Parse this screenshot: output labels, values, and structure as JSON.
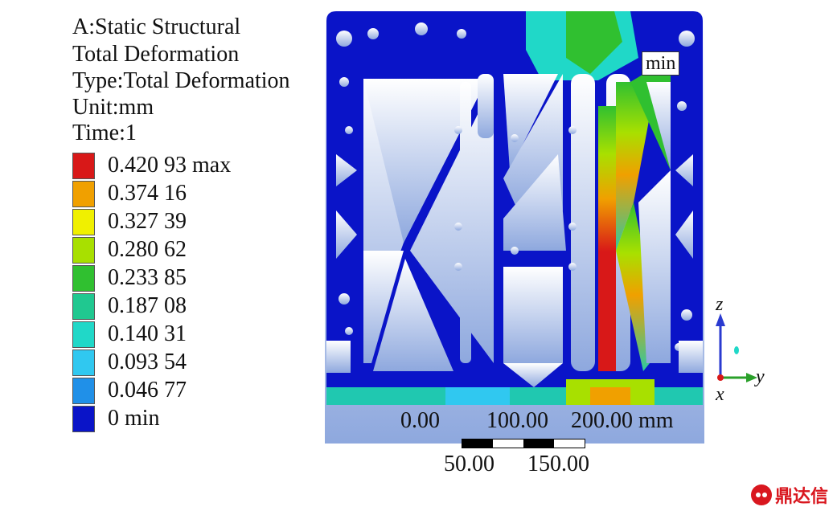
{
  "header": {
    "analysis": "A:Static Structural",
    "result": "Total Deformation",
    "type": "Type:Total Deformation",
    "unit": "Unit:mm",
    "time": "Time:1"
  },
  "legend": {
    "levels": [
      {
        "label": "0.420 93 max",
        "color": "#d81818"
      },
      {
        "label": "0.374 16",
        "color": "#f0a000"
      },
      {
        "label": "0.327 39",
        "color": "#f0f000"
      },
      {
        "label": "0.280 62",
        "color": "#a8e000"
      },
      {
        "label": "0.233 85",
        "color": "#30c030"
      },
      {
        "label": "0.187 08",
        "color": "#20c890"
      },
      {
        "label": "0.140 31",
        "color": "#20d8c8"
      },
      {
        "label": "0.093 54",
        "color": "#30c8f0"
      },
      {
        "label": "0.046 77",
        "color": "#2090e8"
      },
      {
        "label": "0 min",
        "color": "#0a14c8"
      }
    ]
  },
  "viewport": {
    "min_tag": "min",
    "background_top": "#ffffff",
    "background_bottom": "#8ea8de"
  },
  "scale": {
    "top_labels": [
      "0.00",
      "100.00",
      "200.00 mm"
    ],
    "bottom_labels": [
      "50.00",
      "150.00"
    ]
  },
  "axes": {
    "z": "z",
    "y": "y",
    "x": "x"
  },
  "brand": {
    "name": "鼎达信",
    "icon": "brand-logo-icon"
  }
}
